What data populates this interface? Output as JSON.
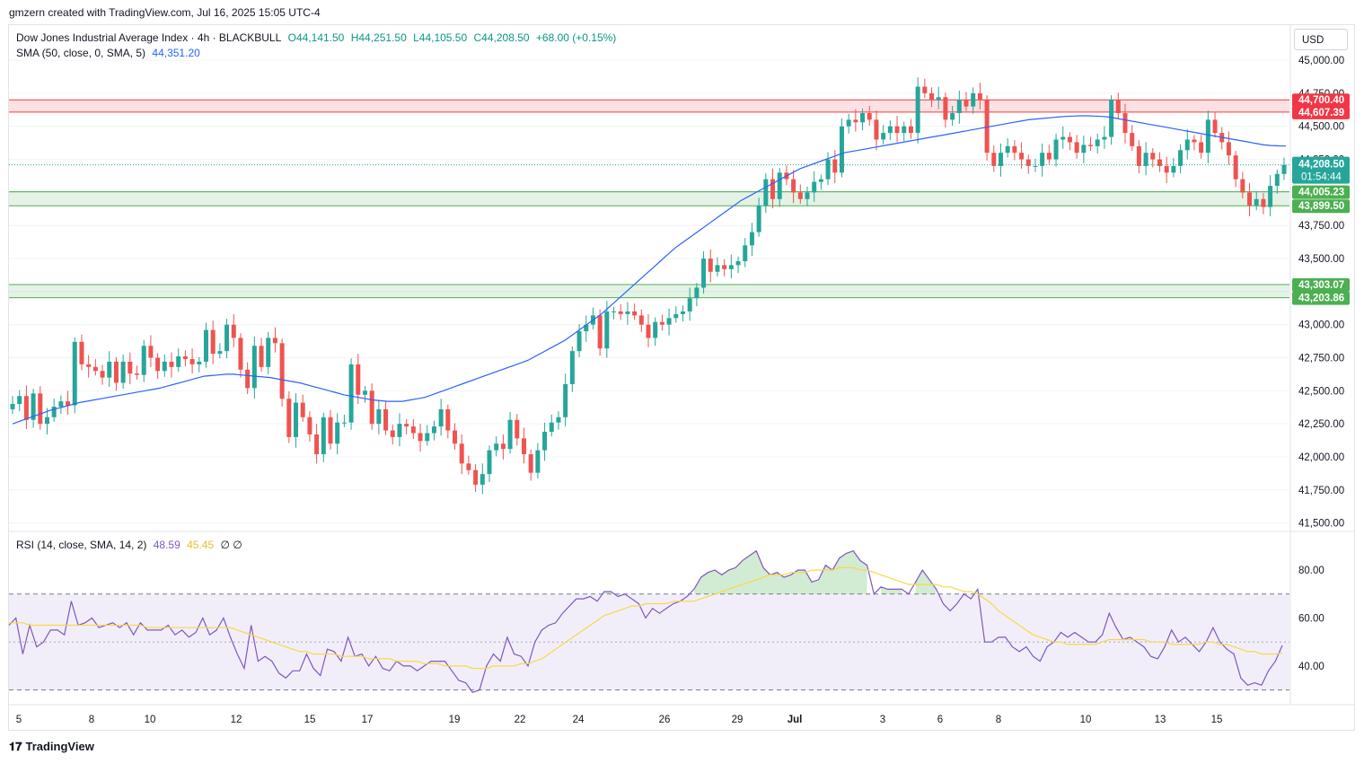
{
  "header": {
    "attribution": "gmzern created with TradingView.com, Jul 16, 2025 15:05 UTC-4"
  },
  "legend": {
    "symbol": "Dow Jones Industrial Average Index · 4h · BLACKBULL",
    "o": "O44,141.50",
    "h": "H44,251.50",
    "l": "L44,105.50",
    "c": "C44,208.50",
    "change": "+68.00 (+0.15%)",
    "sma_label": "SMA (50, close, 0, SMA, 5)",
    "sma_value": "44,351.20",
    "rsi_label": "RSI (14, close, SMA, 14, 2)",
    "rsi_value": "48.59",
    "rsi_ma_value": "45.45",
    "rsi_extra": "∅ ∅"
  },
  "currency": "USD",
  "footer": {
    "brand": "TradingView"
  },
  "colors": {
    "up": "#26a69a",
    "down": "#ef5350",
    "sma": "#2962ff",
    "rsi": "#7e57c2",
    "rsi_ma": "#f5d94a",
    "resistance": "#f23645",
    "support": "#4caf50"
  },
  "chart_data": [
    {
      "type": "candlestick",
      "title": "Dow Jones Industrial Average Index · 4h · BLACKBULL",
      "ylim": [
        41450,
        45150
      ],
      "y_ticks": [
        "45,000.00",
        "44,750.00",
        "44,500.00",
        "44,250.00",
        "43,750.00",
        "43,500.00",
        "43,000.00",
        "42,750.00",
        "42,500.00",
        "42,250.00",
        "42,000.00",
        "41,750.00",
        "41,500.00"
      ],
      "x_ticks": [
        "5",
        "8",
        "10",
        "12",
        "15",
        "17",
        "19",
        "22",
        "24",
        "26",
        "29",
        "Jul",
        "3",
        "6",
        "8",
        "10",
        "13",
        "15"
      ],
      "close": [
        42400,
        42460,
        42280,
        42480,
        42250,
        42300,
        42380,
        42420,
        42390,
        42870,
        42700,
        42680,
        42650,
        42600,
        42720,
        42560,
        42720,
        42630,
        42620,
        42840,
        42750,
        42650,
        42720,
        42680,
        42760,
        42740,
        42700,
        42720,
        42960,
        42780,
        42800,
        43000,
        42900,
        42660,
        42520,
        42840,
        42680,
        42900,
        42860,
        42440,
        42150,
        42410,
        42300,
        42170,
        42020,
        42300,
        42100,
        42260,
        42260,
        42700,
        42470,
        42500,
        42250,
        42360,
        42200,
        42150,
        42250,
        42230,
        42180,
        42120,
        42180,
        42230,
        42360,
        42200,
        42100,
        41950,
        41900,
        41790,
        41870,
        42050,
        42100,
        42060,
        42280,
        42140,
        42020,
        41880,
        42050,
        42190,
        42260,
        42300,
        42550,
        42800,
        42950,
        43000,
        43070,
        42820,
        43100,
        43100,
        43080,
        43100,
        43070,
        43000,
        42900,
        43020,
        43000,
        43050,
        43080,
        43100,
        43200,
        43280,
        43500,
        43400,
        43450,
        43420,
        43450,
        43480,
        43600,
        43700,
        43900,
        44100,
        43950,
        44150,
        44100,
        44000,
        43950,
        44000,
        44080,
        44100,
        44250,
        44150,
        44500,
        44550,
        44530,
        44600,
        44550,
        44400,
        44450,
        44500,
        44450,
        44500,
        44450,
        44800,
        44750,
        44700,
        44720,
        44550,
        44600,
        44700,
        44650,
        44750,
        44700,
        44300,
        44200,
        44300,
        44350,
        44300,
        44250,
        44200,
        44200,
        44300,
        44250,
        44400,
        44420,
        44380,
        44300,
        44360,
        44350,
        44400,
        44420,
        44700,
        44600,
        44450,
        44350,
        44200,
        44300,
        44250,
        44200,
        44150,
        44200,
        44320,
        44400,
        44380,
        44300,
        44550,
        44450,
        44380,
        44280,
        44100,
        44000,
        43900,
        43950,
        43890,
        44050,
        44140,
        44208.5
      ],
      "open_offset_note": "",
      "sma": [
        42250,
        42270,
        42290,
        42310,
        42330,
        42350,
        42365,
        42380,
        42395,
        42410,
        42420,
        42430,
        42440,
        42450,
        42460,
        42470,
        42480,
        42490,
        42500,
        42510,
        42520,
        42535,
        42550,
        42565,
        42580,
        42595,
        42610,
        42615,
        42620,
        42625,
        42625,
        42620,
        42615,
        42610,
        42605,
        42600,
        42590,
        42580,
        42570,
        42560,
        42545,
        42530,
        42515,
        42500,
        42485,
        42470,
        42460,
        42450,
        42440,
        42430,
        42425,
        42420,
        42420,
        42420,
        42430,
        42440,
        42450,
        42470,
        42490,
        42510,
        42530,
        42550,
        42570,
        42590,
        42610,
        42630,
        42650,
        42670,
        42690,
        42710,
        42730,
        42760,
        42790,
        42820,
        42850,
        42880,
        42920,
        42960,
        43000,
        43040,
        43080,
        43130,
        43180,
        43230,
        43280,
        43330,
        43380,
        43430,
        43480,
        43530,
        43580,
        43620,
        43660,
        43700,
        43740,
        43780,
        43820,
        43860,
        43900,
        43940,
        43970,
        44000,
        44030,
        44060,
        44090,
        44120,
        44150,
        44180,
        44200,
        44220,
        44240,
        44260,
        44280,
        44300,
        44310,
        44320,
        44330,
        44340,
        44350,
        44360,
        44370,
        44380,
        44390,
        44400,
        44410,
        44420,
        44430,
        44440,
        44450,
        44460,
        44470,
        44480,
        44490,
        44500,
        44510,
        44520,
        44530,
        44540,
        44550,
        44555,
        44560,
        44565,
        44570,
        44575,
        44578,
        44580,
        44580,
        44578,
        44575,
        44570,
        44560,
        44550,
        44540,
        44530,
        44520,
        44510,
        44500,
        44490,
        44480,
        44470,
        44460,
        44450,
        44440,
        44430,
        44420,
        44410,
        44400,
        44390,
        44380,
        44370,
        44360,
        44355,
        44352,
        44351
      ],
      "horizontal_levels": [
        {
          "label": "44,700.40",
          "value": 44700.4,
          "kind": "resistance"
        },
        {
          "label": "44,607.39",
          "value": 44607.39,
          "kind": "resistance"
        },
        {
          "label": "44,005.23",
          "value": 44005.23,
          "kind": "support"
        },
        {
          "label": "43,899.50",
          "value": 43899.5,
          "kind": "support"
        },
        {
          "label": "43,303.07",
          "value": 43303.07,
          "kind": "support"
        },
        {
          "label": "43,203.86",
          "value": 43203.86,
          "kind": "support"
        }
      ],
      "last_price": {
        "label": "44,208.50",
        "countdown": "01:54:44",
        "value": 44208.5
      }
    },
    {
      "type": "line",
      "title": "RSI (14, close, SMA, 14, 2)",
      "ylim": [
        25,
        95
      ],
      "y_ticks": [
        "80.00",
        "60.00",
        "40.00"
      ],
      "bands": [
        30,
        70
      ],
      "series": [
        {
          "name": "RSI",
          "values": [
            57,
            60,
            45,
            57,
            48,
            50,
            55,
            55,
            53,
            67,
            57,
            58,
            60,
            56,
            57,
            58,
            56,
            58,
            53,
            58,
            55,
            55,
            55,
            57,
            53,
            55,
            52,
            54,
            60,
            53,
            55,
            60,
            52,
            45,
            39,
            57,
            42,
            44,
            42,
            37,
            35,
            38,
            38,
            45,
            39,
            36,
            47,
            46,
            42,
            52,
            44,
            45,
            40,
            44,
            39,
            38,
            42,
            40,
            40,
            38,
            40,
            42,
            42,
            42,
            38,
            34,
            33,
            29,
            30,
            40,
            45,
            42,
            52,
            45,
            44,
            40,
            50,
            55,
            57,
            58,
            62,
            65,
            68,
            68,
            69,
            67,
            71,
            71,
            69,
            70,
            68,
            66,
            60,
            64,
            62,
            64,
            66,
            67,
            69,
            72,
            77,
            79,
            80,
            78,
            80,
            81,
            84,
            86,
            88,
            81,
            78,
            79,
            77,
            78,
            80,
            80,
            75,
            76,
            82,
            80,
            85,
            87,
            88,
            84,
            82,
            70,
            73,
            72,
            72,
            72,
            70,
            75,
            80,
            76,
            72,
            66,
            63,
            66,
            70,
            68,
            72,
            50,
            50,
            52,
            52,
            48,
            46,
            48,
            44,
            42,
            48,
            50,
            54,
            52,
            54,
            52,
            50,
            50,
            53,
            62,
            56,
            51,
            52,
            50,
            48,
            44,
            43,
            48,
            55,
            50,
            52,
            49,
            46,
            50,
            56,
            50,
            47,
            45,
            35,
            32,
            33,
            32,
            38,
            42,
            48.59
          ]
        },
        {
          "name": "RSI MA",
          "values": [
            58,
            58,
            58,
            57,
            57,
            57,
            57,
            57,
            57,
            57,
            57,
            57,
            57,
            57,
            57,
            57,
            57,
            57,
            57,
            57,
            56,
            56,
            56,
            56,
            56,
            56,
            56,
            56,
            56,
            56,
            56,
            56,
            56,
            55,
            54,
            53,
            52,
            51,
            50,
            49,
            48,
            47,
            46,
            46,
            45,
            45,
            45,
            45,
            44,
            44,
            44,
            44,
            43,
            43,
            43,
            43,
            42,
            42,
            42,
            42,
            41,
            41,
            41,
            40,
            40,
            40,
            40,
            39,
            39,
            39,
            40,
            40,
            40,
            40,
            41,
            41,
            42,
            43,
            45,
            47,
            49,
            51,
            53,
            55,
            57,
            59,
            61,
            62,
            63,
            64,
            65,
            65,
            66,
            66,
            66,
            66,
            67,
            67,
            67,
            67,
            68,
            69,
            70,
            71,
            72,
            73,
            74,
            75,
            76,
            77,
            78,
            78,
            78,
            79,
            79,
            79,
            80,
            80,
            80,
            80,
            81,
            81,
            81,
            80,
            80,
            79,
            78,
            77,
            76,
            75,
            74,
            74,
            74,
            74,
            74,
            73,
            73,
            72,
            71,
            71,
            70,
            68,
            66,
            63,
            61,
            59,
            57,
            55,
            53,
            52,
            51,
            50,
            50,
            49,
            49,
            49,
            49,
            49,
            50,
            51,
            51,
            51,
            51,
            51,
            51,
            50,
            50,
            50,
            49,
            49,
            49,
            49,
            49,
            50,
            50,
            49,
            49,
            48,
            47,
            46,
            46,
            45,
            45,
            45,
            45.45
          ]
        }
      ]
    }
  ]
}
